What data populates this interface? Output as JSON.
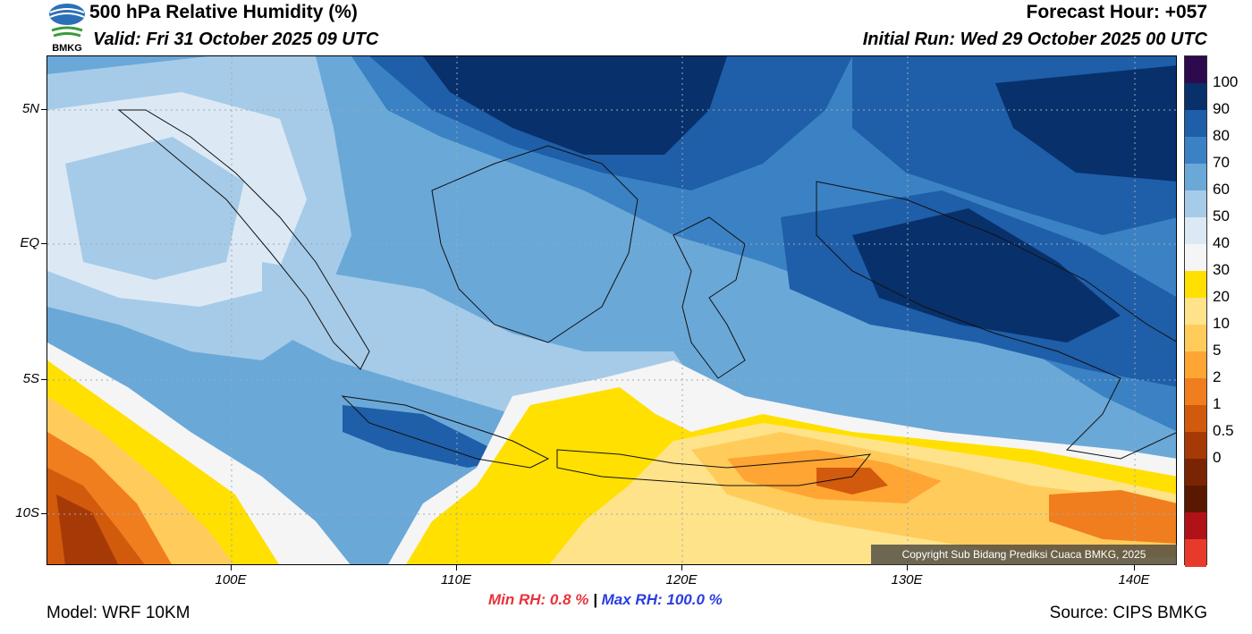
{
  "header": {
    "title": "500 hPa Relative Humidity (%)",
    "valid": "Valid: Fri 31 October 2025 09 UTC",
    "forecast_hour": "Forecast Hour: +057",
    "initial_run": "Initial Run: Wed 29 October 2025 00 UTC",
    "logo_text": "BMKG"
  },
  "map": {
    "lat_labels": [
      "5N",
      "EQ",
      "5S",
      "10S"
    ],
    "lon_labels": [
      "100E",
      "110E",
      "120E",
      "130E",
      "140E"
    ],
    "copyright": "Copyright Sub Bidang Prediksi Cuaca BMKG, 2025"
  },
  "colorbar": {
    "labels": [
      "100",
      "90",
      "80",
      "70",
      "60",
      "50",
      "40",
      "30",
      "20",
      "10",
      "5",
      "2",
      "1",
      "0.5",
      "0"
    ],
    "colors": [
      "#2d0a4e",
      "#08306b",
      "#1f5ea8",
      "#3b82c4",
      "#6aa8d8",
      "#a6cbe8",
      "#dce9f4",
      "#f5f5f5",
      "#ffe000",
      "#ffe38a",
      "#ffcc5c",
      "#ffa533",
      "#f07e1e",
      "#d25a0c",
      "#a63a06",
      "#7a2404",
      "#5a1800",
      "#b11218",
      "#e83a2a"
    ]
  },
  "stats": {
    "min_label": "Min RH:   0.8 %",
    "separator": "|",
    "max_label": "Max RH: 100.0 %"
  },
  "footer": {
    "model": "Model: WRF 10KM",
    "source": "Source: CIPS BMKG"
  }
}
